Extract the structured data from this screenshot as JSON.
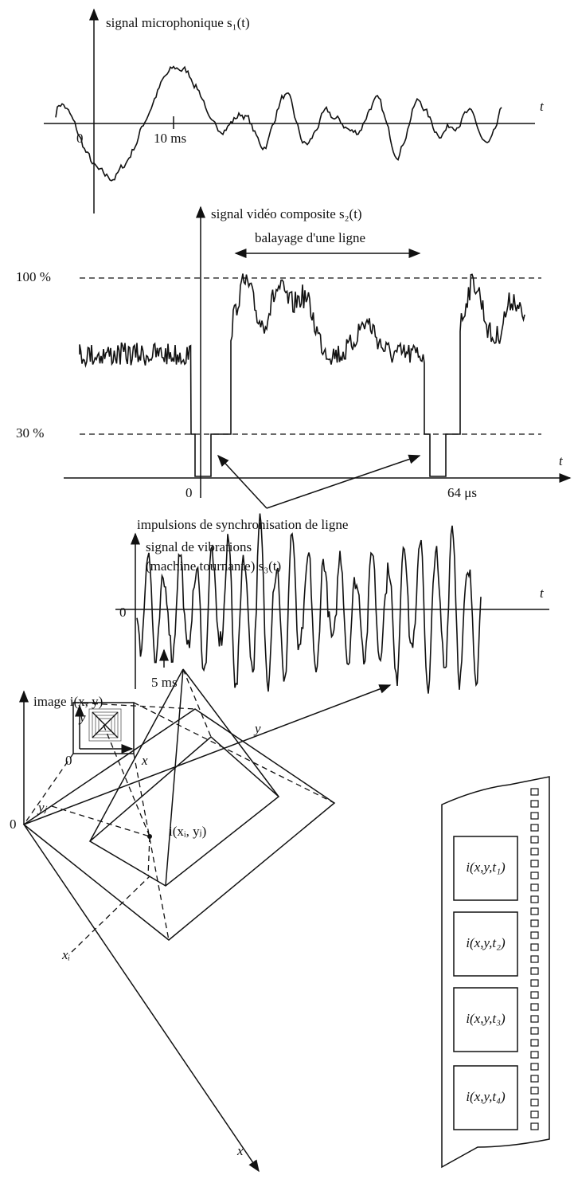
{
  "panel_1": {
    "title": "signal microphonique s₁(t)",
    "axis_t": "t",
    "origin": "0",
    "tick": "10 ms"
  },
  "panel_2": {
    "title": "signal vidéo composite s₂(t)",
    "span": "balayage d'une ligne",
    "level_high": "100 %",
    "level_low": "30 %",
    "origin": "0",
    "tick": "64 μs",
    "axis_t": "t",
    "caption": "impulsions de synchronisation de ligne"
  },
  "panel_3": {
    "title_line_1": "signal de vibrations",
    "title_line_2": "(machine tournante) s₃(t)",
    "axis_t": "t",
    "origin": "0",
    "tick": "5 ms"
  },
  "panel_4": {
    "title": "image i(x, y)",
    "inset_y": "y",
    "inset_origin": "0",
    "inset_x": "x",
    "axis_y": "y",
    "axis_x": "x",
    "origin": "0",
    "y_j": "yⱼ",
    "x_i": "xᵢ",
    "point": "i(xᵢ, yⱼ)"
  },
  "film": {
    "frames": [
      "i(x,y,t₁)",
      "i(x,y,t₂)",
      "i(x,y,t₃)",
      "i(x,y,t₄)"
    ]
  }
}
